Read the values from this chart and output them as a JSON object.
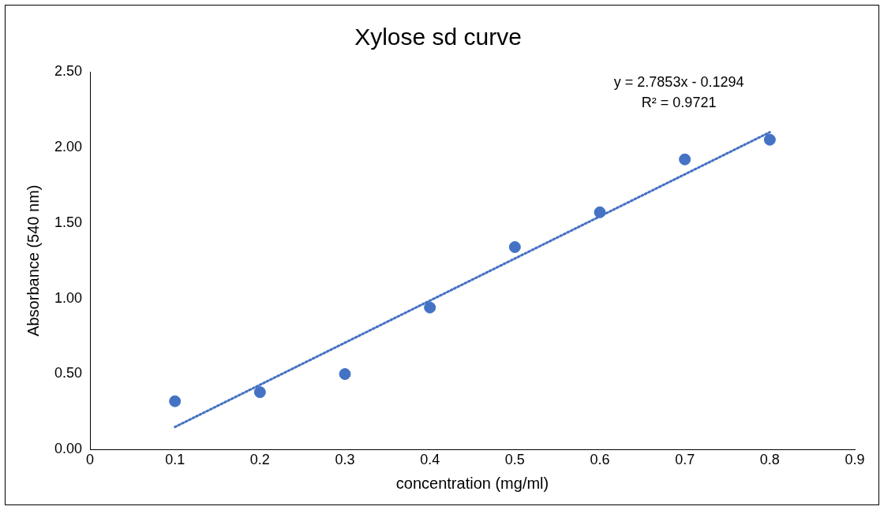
{
  "chart_data": {
    "type": "scatter",
    "title": "Xylose sd curve",
    "xlabel": "concentration (mg/ml)",
    "ylabel": "Absorbance (540 nm)",
    "x": [
      0.1,
      0.2,
      0.3,
      0.4,
      0.5,
      0.6,
      0.7,
      0.8
    ],
    "series": [
      {
        "color": "#4472c4",
        "values": [
          0.32,
          0.38,
          0.5,
          0.94,
          1.34,
          1.57,
          1.92,
          2.05
        ]
      },
      {
        "type": "line",
        "color": "#4472c4",
        "x": [
          0.1,
          0.8
        ],
        "values": [
          0.15,
          2.1
        ],
        "line_style": "dotted",
        "marker": "none"
      }
    ],
    "xlim": [
      0,
      0.9
    ],
    "xticks": [
      0,
      0.1,
      0.2,
      0.3,
      0.4,
      0.5,
      0.6,
      0.7,
      0.8,
      0.9
    ],
    "ylim": [
      0,
      2.5
    ],
    "yticks": [
      {
        "value": 0,
        "label": "0.00"
      },
      {
        "value": 0.5,
        "label": "0.50"
      },
      {
        "value": 1,
        "label": "1.00"
      },
      {
        "value": 1.5,
        "label": "1.50"
      },
      {
        "value": 2,
        "label": "2.00"
      },
      {
        "value": 2.5,
        "label": "2.50"
      }
    ],
    "annotations": [
      "y = 2.7853x - 0.1294",
      "R² = 0.9721"
    ],
    "marker": "circle",
    "grid": false,
    "legend": false
  }
}
